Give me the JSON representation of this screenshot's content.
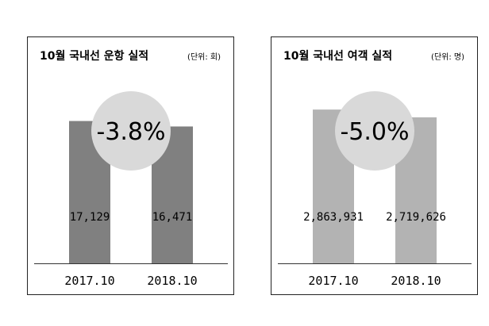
{
  "chart_data": [
    {
      "type": "bar",
      "title": "10월 국내선 운항 실적",
      "unit_label": "(단위: 회)",
      "categories": [
        "2017.10",
        "2018.10"
      ],
      "values": [
        17129,
        16471
      ],
      "value_labels": [
        "17,129",
        "16,471"
      ],
      "change_label": "-3.8%",
      "ylim": [
        0,
        21000
      ],
      "bar_color": "#808080"
    },
    {
      "type": "bar",
      "title": "10월 국내선 여객 실적",
      "unit_label": "(단위: 명)",
      "categories": [
        "2017.10",
        "2018.10"
      ],
      "values": [
        2863931,
        2719626
      ],
      "value_labels": [
        "2,863,931",
        "2,719,626"
      ],
      "change_label": "-5.0%",
      "ylim": [
        0,
        3250000
      ],
      "bar_color": "#b3b3b3"
    }
  ],
  "colors": {
    "circle": "#d9d9d9",
    "axis": "#333333"
  }
}
